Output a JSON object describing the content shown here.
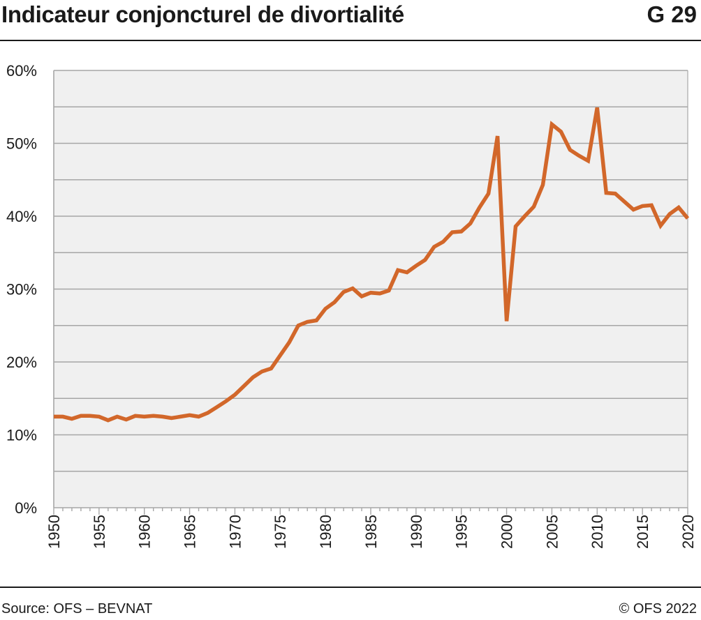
{
  "header": {
    "title": "Indicateur conjoncturel de divortialité",
    "code": "G 29"
  },
  "footer": {
    "source": "Source: OFS – BEVNAT",
    "copyright": "© OFS 2022"
  },
  "colors": {
    "line": "#d2672a",
    "plot_bg": "#f0f0f0",
    "grid": "#a6a6a6"
  },
  "chart_data": {
    "type": "line",
    "title": "Indicateur conjoncturel de divortialité",
    "xlabel": "",
    "ylabel": "",
    "xlim": [
      1950,
      2020
    ],
    "ylim": [
      0,
      60
    ],
    "grid": true,
    "legend": "none",
    "x_ticks": [
      "1950",
      "1955",
      "1960",
      "1965",
      "1970",
      "1975",
      "1980",
      "1985",
      "1990",
      "1995",
      "2000",
      "2005",
      "2010",
      "2015",
      "2020"
    ],
    "y_ticks": [
      "0%",
      "10%",
      "20%",
      "30%",
      "40%",
      "50%",
      "60%"
    ],
    "x": [
      1950,
      1951,
      1952,
      1953,
      1954,
      1955,
      1956,
      1957,
      1958,
      1959,
      1960,
      1961,
      1962,
      1963,
      1964,
      1965,
      1966,
      1967,
      1968,
      1969,
      1970,
      1971,
      1972,
      1973,
      1974,
      1975,
      1976,
      1977,
      1978,
      1979,
      1980,
      1981,
      1982,
      1983,
      1984,
      1985,
      1986,
      1987,
      1988,
      1989,
      1990,
      1991,
      1992,
      1993,
      1994,
      1995,
      1996,
      1997,
      1998,
      1999,
      2000,
      2001,
      2002,
      2003,
      2004,
      2005,
      2006,
      2007,
      2008,
      2009,
      2010,
      2011,
      2012,
      2013,
      2014,
      2015,
      2016,
      2017,
      2018,
      2019,
      2020
    ],
    "series": [
      {
        "name": "",
        "values": [
          12.5,
          12.5,
          12.2,
          12.6,
          12.6,
          12.5,
          12.0,
          12.5,
          12.1,
          12.6,
          12.5,
          12.6,
          12.5,
          12.3,
          12.5,
          12.7,
          12.5,
          13.0,
          13.8,
          14.6,
          15.5,
          16.7,
          17.9,
          18.7,
          19.1,
          20.9,
          22.7,
          25.0,
          25.5,
          25.7,
          27.3,
          28.2,
          29.6,
          30.1,
          29.0,
          29.5,
          29.4,
          29.8,
          32.6,
          32.3,
          33.2,
          34.0,
          35.8,
          36.5,
          37.8,
          37.9,
          39.0,
          41.2,
          43.1,
          51.0,
          25.6,
          38.6,
          40.0,
          41.3,
          44.3,
          52.6,
          51.6,
          49.1,
          48.3,
          47.6,
          54.9,
          43.2,
          43.1,
          42.0,
          40.9,
          41.4,
          41.5,
          38.7,
          40.3,
          41.2,
          39.7
        ]
      }
    ]
  }
}
